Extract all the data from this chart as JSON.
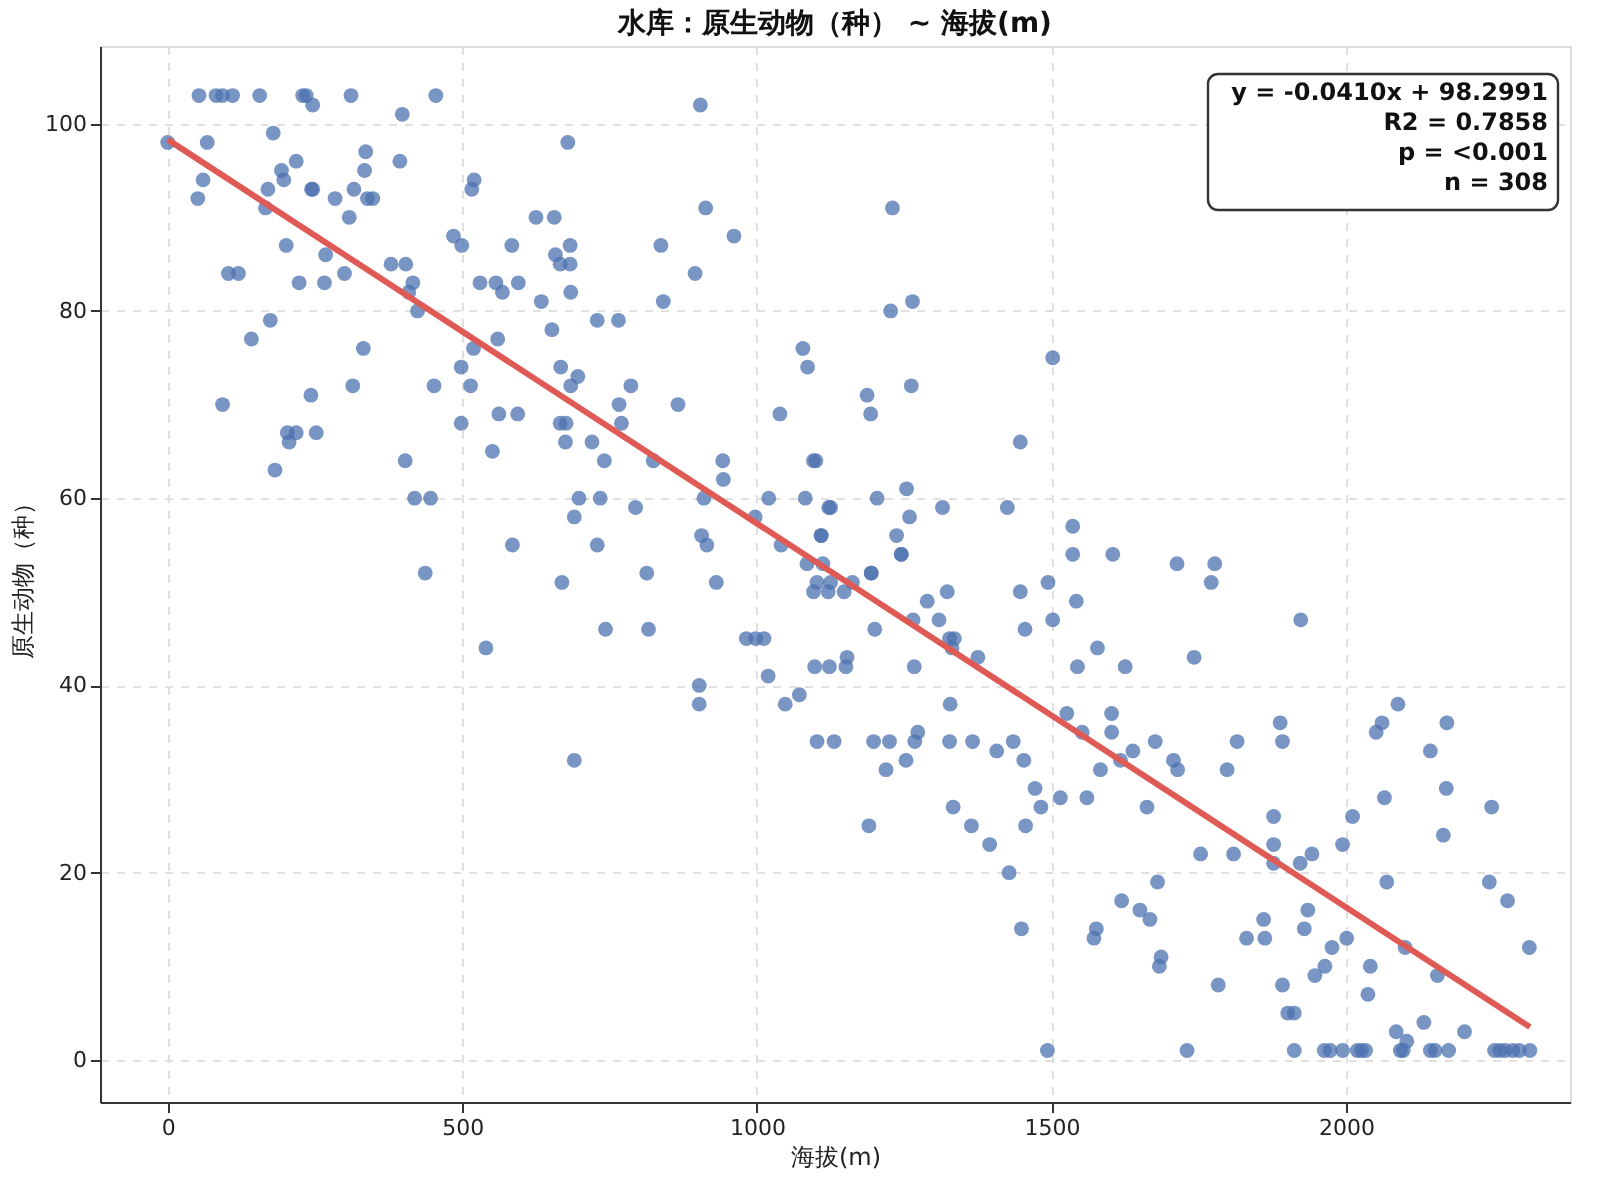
{
  "chart_data": {
    "type": "scatter",
    "title": "水库：原生动物（种） ~ 海拔(m)",
    "xlabel": "海拔(m)",
    "ylabel": "原生动物（种）",
    "xlim": [
      -115,
      2380
    ],
    "ylim": [
      -4.5,
      108.3
    ],
    "xticks": [
      0,
      500,
      1000,
      1500,
      2000
    ],
    "yticks": [
      0,
      20,
      40,
      60,
      80,
      100
    ],
    "grid": true,
    "annotations": [
      "y = -0.0410x + 98.2991",
      "R2 = 0.7858",
      "p = <0.001",
      "n = 308"
    ],
    "series": [
      {
        "marker": "circle",
        "color": "#4c72b0",
        "x": [
          53,
          82,
          93,
          110,
          156,
          229,
          235,
          246,
          311,
          398,
          455,
          904,
          0,
          67,
          179,
          679,
          218,
          193,
          197,
          336,
          334,
          394,
          60,
          51,
          170,
          166,
          244,
          246,
          284,
          316,
          339,
          348,
          308,
          520,
          516,
          201,
          268,
          103,
          120,
          223,
          266,
          300,
          379,
          404,
          416,
          409,
          424,
          485,
          499,
          584,
          625,
          656,
          658,
          666,
          683,
          683,
          684,
          530,
          557,
          568,
          595,
          634,
          837,
          913,
          961,
          895,
          841,
          729,
          765,
          652,
          560,
          519,
          498,
          514,
          452,
          667,
          684,
          696,
          786,
          766,
          770,
          866,
          1078,
          1086,
          1039,
          174,
          142,
          332,
          314,
          93,
          243,
          203,
          218,
          206,
          252,
          182,
          403,
          419,
          446,
          498,
          562,
          594,
          551,
          666,
          676,
          675,
          720,
          741,
          824,
          942,
          943,
          910,
          698,
          690,
          734,
          794,
          585,
          729,
          997,
          1020,
          1082,
          1096,
          1122,
          906,
          915,
          1109,
          1041,
          437,
          669,
          813,
          931,
          540,
          743,
          816,
          982,
          998,
          1012,
          1019,
          902,
          902,
          1048,
          1072,
          1098,
          1102,
          690,
          1085,
          1096,
          1102,
          1112,
          1121,
          1125,
          1148,
          1162,
          1194,
          1245,
          1200,
          1123,
          1151,
          1153,
          1265,
          1267,
          1289,
          1309,
          1323,
          1327,
          1335,
          1331,
          1375,
          1447,
          1455,
          1494,
          1502,
          1542,
          1578,
          1544,
          1625,
          1604,
          1777,
          1771,
          1742,
          1923,
          1131,
          1198,
          1225,
          1219,
          1253,
          1268,
          1273,
          1328,
          1327,
          1366,
          1407,
          1435,
          1453,
          1472,
          1333,
          1364,
          1395,
          1428,
          1190,
          1449,
          1526,
          1552,
          1602,
          1602,
          1638,
          1617,
          1583,
          1676,
          1707,
          1714,
          1515,
          1560,
          1482,
          1662,
          1456,
          1753,
          1809,
          1680,
          1619,
          1650,
          1667,
          1576,
          1572,
          1686,
          1683,
          1783,
          1815,
          1798,
          1888,
          1892,
          1877,
          1877,
          1877,
          1922,
          1942,
          1935,
          1929,
          1860,
          1831,
          1862,
          1976,
          2001,
          1964,
          1947,
          1892,
          1901,
          1912,
          1994,
          2011,
          2051,
          2061,
          2088,
          2065,
          2069,
          2171,
          2143,
          2170,
          2165,
          2247,
          2243,
          2274,
          2311,
          2100,
          2041,
          2037,
          2155,
          2085,
          2103,
          2132,
          2201,
          1493,
          1730,
          1912,
          1963,
          1973,
          1994,
          2019,
          2026,
          2033,
          2092,
          2097,
          2143,
          2151,
          2174,
          2252,
          2261,
          2270,
          2283,
          2294,
          2312,
          1230,
          1227,
          1264,
          1502,
          1187,
          1193,
          1262,
          1100,
          1447,
          1204,
          1254,
          1125,
          1315,
          1425,
          1109,
          1237,
          1259,
          1245,
          1536,
          1536,
          1713,
          1194
        ],
        "values": [
          103,
          103,
          103,
          103,
          103,
          103,
          103,
          102,
          103,
          101,
          103,
          102,
          98,
          98,
          99,
          98,
          96,
          95,
          94,
          97,
          95,
          96,
          94,
          92,
          93,
          91,
          93,
          93,
          92,
          93,
          92,
          92,
          90,
          94,
          93,
          87,
          86,
          84,
          84,
          83,
          83,
          84,
          85,
          85,
          83,
          82,
          80,
          88,
          87,
          87,
          90,
          90,
          86,
          85,
          85,
          87,
          82,
          83,
          83,
          82,
          83,
          81,
          87,
          91,
          88,
          84,
          81,
          79,
          79,
          78,
          77,
          76,
          74,
          72,
          72,
          74,
          72,
          73,
          72,
          70,
          68,
          70,
          76,
          74,
          69,
          79,
          77,
          76,
          72,
          70,
          71,
          67,
          67,
          66,
          67,
          63,
          64,
          60,
          60,
          68,
          69,
          69,
          65,
          68,
          68,
          66,
          66,
          64,
          64,
          64,
          62,
          60,
          60,
          58,
          60,
          59,
          55,
          55,
          58,
          60,
          60,
          64,
          59,
          56,
          55,
          56,
          55,
          52,
          51,
          52,
          51,
          44,
          46,
          46,
          45,
          45,
          45,
          41,
          40,
          38,
          38,
          39,
          42,
          34,
          32,
          53,
          50,
          51,
          53,
          50,
          51,
          50,
          51,
          52,
          54,
          46,
          42,
          42,
          43,
          47,
          42,
          49,
          47,
          50,
          45,
          45,
          44,
          43,
          50,
          46,
          51,
          47,
          49,
          44,
          42,
          42,
          54,
          53,
          51,
          43,
          47,
          34,
          34,
          34,
          31,
          32,
          34,
          35,
          38,
          34,
          34,
          33,
          34,
          32,
          29,
          27,
          25,
          23,
          20,
          25,
          14,
          37,
          35,
          37,
          35,
          33,
          32,
          31,
          34,
          32,
          31,
          28,
          28,
          27,
          27,
          25,
          22,
          22,
          19,
          17,
          16,
          15,
          14,
          13,
          11,
          10,
          8,
          34,
          31,
          36,
          34,
          26,
          23,
          21,
          21,
          22,
          16,
          14,
          15,
          13,
          13,
          12,
          13,
          10,
          9,
          8,
          5,
          5,
          23,
          26,
          35,
          36,
          38,
          28,
          19,
          36,
          33,
          29,
          24,
          27,
          19,
          17,
          12,
          12,
          10,
          7,
          9,
          3,
          2,
          4,
          3,
          1,
          1,
          1,
          1,
          1,
          1,
          1,
          1,
          1,
          1,
          1,
          1,
          1,
          1,
          1,
          1,
          1,
          1,
          1,
          1,
          91,
          80,
          81,
          75,
          71,
          69,
          72,
          64,
          66,
          60,
          61,
          59,
          59,
          59,
          56,
          56,
          58,
          54,
          57,
          54,
          53,
          52
        ]
      },
      {
        "type": "line",
        "color": "#e05a55",
        "x": [
          0,
          2312
        ],
        "values": [
          98.3,
          3.5
        ]
      }
    ]
  }
}
